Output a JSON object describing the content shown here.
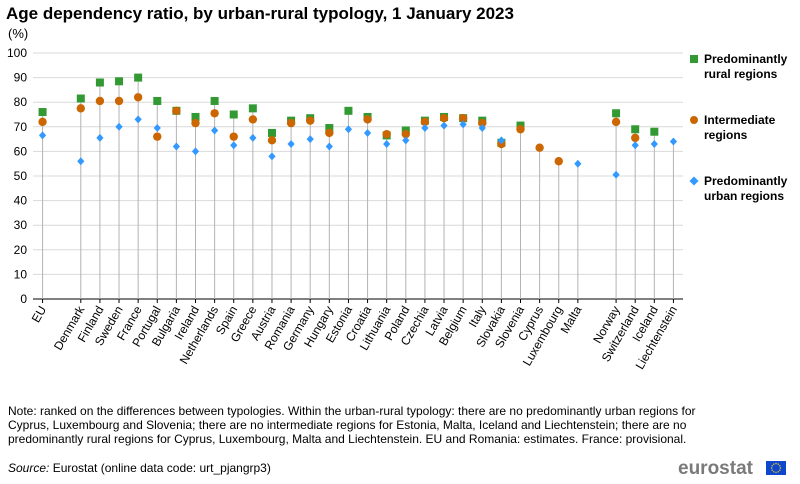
{
  "header": {
    "title": "Age dependency ratio, by urban-rural typology, 1 January 2023",
    "unit": "(%)"
  },
  "legend": {
    "rural": "Predominantly rural regions",
    "intermediate": "Intermediate regions",
    "urban": "Predominantly urban regions"
  },
  "colors": {
    "rural": "#339933",
    "intermediate": "#cc6600",
    "urban": "#3399ff",
    "grid": "#d9d9d9",
    "stem": "#b3b3b3",
    "axis": "#000000"
  },
  "chart_data": {
    "type": "scatter",
    "title": "Age dependency ratio, by urban-rural typology, 1 January 2023",
    "ylabel": "(%)",
    "ylim": [
      0,
      100
    ],
    "yticks": [
      0,
      10,
      20,
      30,
      40,
      50,
      60,
      70,
      80,
      90,
      100
    ],
    "categories": [
      "EU",
      "",
      "Denmark",
      "Finland",
      "Sweden",
      "France",
      "Portugal",
      "Bulgaria",
      "Ireland",
      "Netherlands",
      "Spain",
      "Greece",
      "Austria",
      "Romania",
      "Germany",
      "Hungary",
      "Estonia",
      "Croatia",
      "Lithuania",
      "Poland",
      "Czechia",
      "Latvia",
      "Belgium",
      "Italy",
      "Slovakia",
      "Slovenia",
      "Cyprus",
      "Luxembourg",
      "Malta",
      "",
      "Norway",
      "Switzerland",
      "Iceland",
      "Liechtenstein"
    ],
    "series": [
      {
        "name": "Predominantly rural regions",
        "key": "rural",
        "marker": "square",
        "values": [
          76,
          null,
          81.5,
          88,
          88.5,
          90,
          80.5,
          76.5,
          74,
          80.5,
          75,
          77.5,
          67.5,
          72.5,
          73.5,
          69.5,
          76.5,
          74,
          66.5,
          68.5,
          72.5,
          74,
          73.5,
          72.5,
          63.5,
          70.5,
          null,
          null,
          null,
          null,
          75.5,
          69,
          68,
          null
        ]
      },
      {
        "name": "Intermediate regions",
        "key": "intermediate",
        "marker": "circle",
        "values": [
          72,
          null,
          77.5,
          80.5,
          80.5,
          82,
          66,
          76.5,
          71.5,
          75.5,
          66,
          73,
          64.5,
          71.5,
          72.5,
          67.5,
          null,
          73,
          67,
          67,
          72,
          73.5,
          73.5,
          71.5,
          63,
          69,
          61.5,
          56,
          null,
          null,
          72,
          65.5,
          null,
          null
        ]
      },
      {
        "name": "Predominantly urban regions",
        "key": "urban",
        "marker": "diamond",
        "values": [
          66.5,
          null,
          56,
          65.5,
          70,
          73,
          69.5,
          62,
          60,
          68.5,
          62.5,
          65.5,
          58,
          63,
          65,
          62,
          69,
          67.5,
          63,
          64.5,
          69.5,
          70.5,
          71,
          69.5,
          64.5,
          null,
          null,
          null,
          55,
          null,
          50.5,
          62.5,
          63,
          64
        ]
      }
    ]
  },
  "footer": {
    "note": "Note: ranked on the differences between typologies. Within the urban-rural  typology: there are no predominantly urban regions for Cyprus, Luxembourg and Slovenia; there are no intermediate regions for Estonia, Malta, Iceland and Liechtenstein; there are no predominantly rural regions for Cyprus, Luxembourg, Malta and Liechtenstein. EU and Romania: estimates. France: provisional.",
    "source_label": "Source:",
    "source_text": "Eurostat (online data code: urt_pjangrp3)",
    "logo": "eurostat"
  }
}
